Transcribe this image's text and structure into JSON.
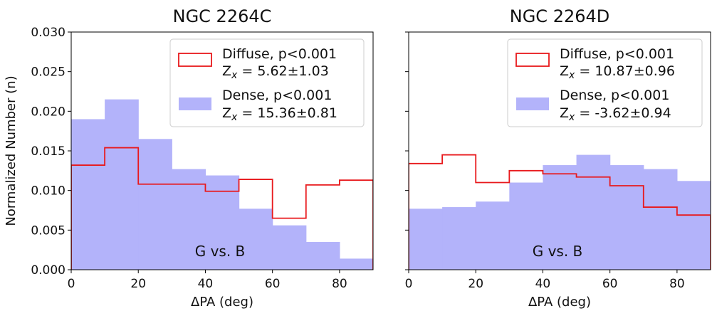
{
  "figure": {
    "shared_ylabel": "Normalized Number (n)"
  },
  "chart_data": [
    {
      "type": "bar",
      "title": "NGC 2264C",
      "xlabel": "ΔPA (deg)",
      "ylabel": "Normalized Number (n)",
      "xlim": [
        0,
        90
      ],
      "ylim": [
        0,
        0.03
      ],
      "bin_edges": [
        0,
        10,
        20,
        30,
        40,
        50,
        60,
        70,
        80,
        90
      ],
      "xticks": [
        0,
        20,
        40,
        60,
        80
      ],
      "xtick_labels": [
        "0",
        "20",
        "40",
        "60",
        "80"
      ],
      "yticks": [
        0,
        0.005,
        0.01,
        0.015,
        0.02,
        0.025,
        0.03
      ],
      "ytick_labels": [
        "0.000",
        "0.005",
        "0.010",
        "0.015",
        "0.020",
        "0.025",
        "0.030"
      ],
      "annotation": "G vs. B",
      "series": [
        {
          "name": "Dense",
          "style": "filled",
          "color": "#b3b3fa",
          "values": [
            0.019,
            0.0215,
            0.0165,
            0.0127,
            0.0119,
            0.0077,
            0.0056,
            0.0035,
            0.0014
          ],
          "legend_line1": "Dense,  p<0.001",
          "legend_line2": "Z",
          "legend_sub": "x",
          "legend_value": " = 15.36±0.81"
        },
        {
          "name": "Diffuse",
          "style": "step",
          "color": "#e8191c",
          "values": [
            0.0132,
            0.0154,
            0.0108,
            0.0108,
            0.0099,
            0.0114,
            0.0065,
            0.0107,
            0.0113
          ],
          "legend_line1": "Diffuse, p<0.001",
          "legend_line2": "Z",
          "legend_sub": "x",
          "legend_value": " = 5.62±1.03"
        }
      ]
    },
    {
      "type": "bar",
      "title": "NGC 2264D",
      "xlabel": "ΔPA (deg)",
      "ylabel": "",
      "xlim": [
        0,
        90
      ],
      "ylim": [
        0,
        0.03
      ],
      "bin_edges": [
        0,
        10,
        20,
        30,
        40,
        50,
        60,
        70,
        80,
        90
      ],
      "xticks": [
        0,
        20,
        40,
        60,
        80
      ],
      "xtick_labels": [
        "0",
        "20",
        "40",
        "60",
        "80"
      ],
      "yticks": [
        0,
        0.005,
        0.01,
        0.015,
        0.02,
        0.025,
        0.03
      ],
      "ytick_labels": [],
      "annotation": "G vs. B",
      "series": [
        {
          "name": "Dense",
          "style": "filled",
          "color": "#b3b3fa",
          "values": [
            0.0077,
            0.0079,
            0.0086,
            0.011,
            0.0132,
            0.0145,
            0.0132,
            0.0127,
            0.0112
          ],
          "legend_line1": "Dense,  p<0.001",
          "legend_line2": "Z",
          "legend_sub": "x",
          "legend_value": " = -3.62±0.94"
        },
        {
          "name": "Diffuse",
          "style": "step",
          "color": "#e8191c",
          "values": [
            0.0134,
            0.0145,
            0.011,
            0.0125,
            0.0121,
            0.0117,
            0.0106,
            0.0079,
            0.0069
          ],
          "legend_line1": "Diffuse, p<0.001",
          "legend_line2": "Z",
          "legend_sub": "x",
          "legend_value": " = 10.87±0.96"
        }
      ]
    }
  ]
}
